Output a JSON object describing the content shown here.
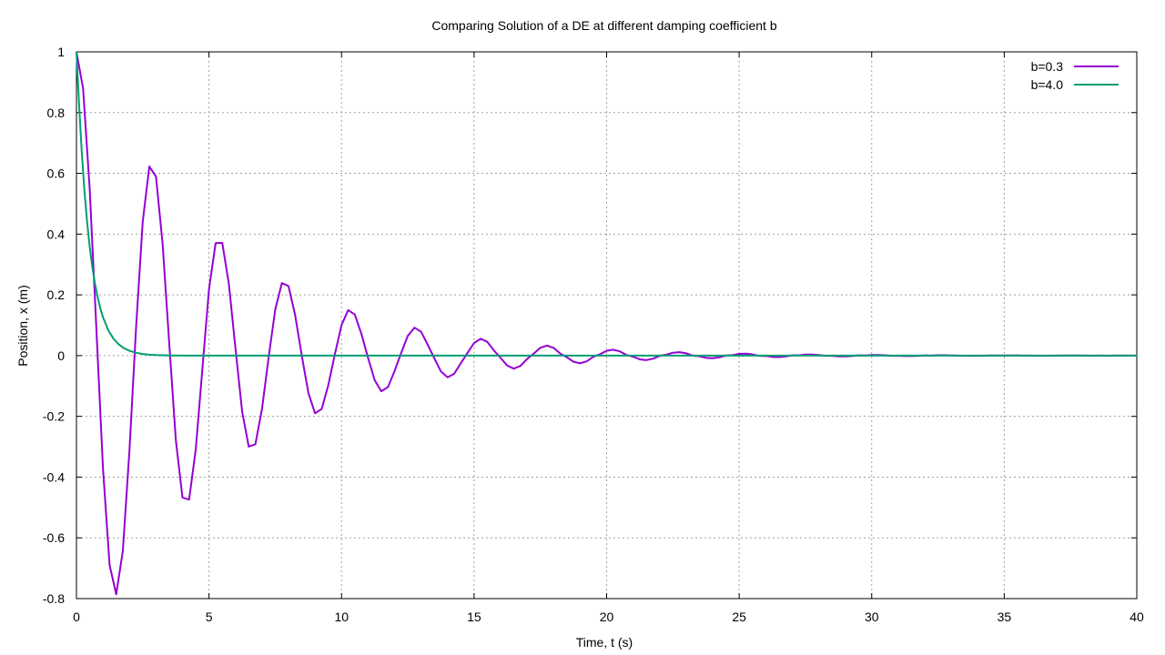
{
  "chart_data": {
    "type": "line",
    "title": "Comparing Solution of a DE at different damping coefficient b",
    "xlabel": "Time, t (s)",
    "ylabel": "Position, x (m)",
    "xlim": [
      0,
      40
    ],
    "ylim": [
      -0.8,
      1
    ],
    "xticks": [
      "0",
      "5",
      "10",
      "15",
      "20",
      "25",
      "30",
      "35",
      "40"
    ],
    "yticks": [
      "-0.8",
      "-0.6",
      "-0.4",
      "-0.2",
      "0",
      "0.2",
      "0.4",
      "0.6",
      "0.8",
      "1"
    ],
    "grid": true,
    "legend_position": "top-right",
    "series": [
      {
        "name": "b=0.3",
        "color": "#9400d3",
        "x": [
          0,
          0.25,
          0.5,
          0.75,
          1,
          1.25,
          1.5,
          1.75,
          2,
          2.25,
          2.5,
          2.75,
          3,
          3.25,
          3.5,
          3.75,
          4,
          4.25,
          4.5,
          4.75,
          5,
          5.25,
          5.5,
          5.75,
          6,
          6.25,
          6.5,
          6.75,
          7,
          7.25,
          7.5,
          7.75,
          8,
          8.25,
          8.5,
          8.75,
          9,
          9.25,
          9.5,
          9.75,
          10,
          10.25,
          10.5,
          10.75,
          11,
          11.25,
          11.5,
          11.75,
          12,
          12.25,
          12.5,
          12.75,
          13,
          13.25,
          13.5,
          13.75,
          14,
          14.25,
          14.5,
          14.75,
          15,
          15.25,
          15.5,
          15.75,
          16,
          16.25,
          16.5,
          16.75,
          17,
          17.25,
          17.5,
          17.75,
          18,
          18.25,
          18.5,
          18.75,
          19,
          19.25,
          19.5,
          19.75,
          20,
          20.25,
          20.5,
          20.75,
          21,
          21.25,
          21.5,
          21.75,
          22,
          22.25,
          22.5,
          22.75,
          23,
          23.25,
          23.5,
          23.75,
          24,
          24.25,
          24.5,
          24.75,
          25,
          25.25,
          25.5,
          25.75,
          26,
          26.25,
          26.5,
          26.75,
          27,
          27.25,
          27.5,
          27.75,
          28,
          28.25,
          28.5,
          28.75,
          29,
          29.25,
          29.5,
          29.75,
          30,
          30.25,
          30.5,
          30.75,
          31,
          31.25,
          31.5,
          31.75,
          32,
          32.25,
          32.5,
          32.75,
          33,
          33.25,
          33.5,
          33.75,
          34,
          34.25,
          34.5,
          34.75,
          35,
          35.25,
          35.5,
          35.75,
          36,
          36.25,
          36.5,
          36.75,
          37,
          37.25,
          37.5,
          37.75,
          38,
          38.25,
          38.5,
          38.75,
          39,
          39.25,
          39.5,
          39.75,
          40
        ],
        "y": [
          1.0,
          0.8798,
          0.5487,
          0.0915,
          -0.3701,
          -0.6897,
          -0.786,
          -0.643,
          -0.3116,
          0.0935,
          0.4406,
          0.6225,
          0.5896,
          0.3681,
          0.0408,
          -0.2787,
          -0.4675,
          -0.4741,
          -0.3094,
          -0.0446,
          0.2189,
          0.3702,
          0.3712,
          0.2356,
          0.0224,
          -0.1838,
          -0.2997,
          -0.2919,
          -0.1755,
          -0.0058,
          0.1519,
          0.2389,
          0.2286,
          0.1334,
          0.0001,
          -0.1228,
          -0.1899,
          -0.1758,
          -0.0977,
          0.0052,
          0.1005,
          0.1497,
          0.1354,
          0.0714,
          -0.0073,
          -0.0808,
          -0.1175,
          -0.1035,
          -0.0511,
          0.0088,
          0.0652,
          0.0919,
          0.0788,
          0.036,
          -0.0089,
          -0.0521,
          -0.0716,
          -0.0597,
          -0.025,
          0.0084,
          0.0416,
          0.0555,
          0.0451,
          0.0169,
          -0.0075,
          -0.0328,
          -0.0429,
          -0.0339,
          -0.011,
          0.0065,
          0.0258,
          0.033,
          0.0254,
          0.0068,
          -0.0055,
          -0.0202,
          -0.0253,
          -0.0189,
          -0.0039,
          0.0045,
          0.0158,
          0.0194,
          0.014,
          0.002,
          -0.0037,
          -0.0122,
          -0.0148,
          -0.0103,
          -0.0008,
          0.0029,
          0.0095,
          0.0112,
          0.0075,
          0.0,
          -0.0023,
          -0.0073,
          -0.0085,
          -0.0055,
          0.0004,
          0.0017,
          0.0056,
          0.0064,
          0.004,
          -0.0006,
          -0.0013,
          -0.0043,
          -0.0048,
          -0.0029,
          0.0007,
          0.0009,
          0.0033,
          0.0036,
          0.0021,
          -0.0007,
          -0.0007,
          -0.0025,
          -0.0027,
          -0.0015,
          0.0007,
          0.0005,
          0.0019,
          0.002,
          0.0011,
          -0.0006,
          -0.0003,
          -0.0015,
          -0.0015,
          -0.0008,
          0.0005,
          0.0002,
          0.0011,
          0.0011,
          0.0006,
          -0.0004,
          -0.0002,
          -0.0008,
          -0.0008,
          -0.0004,
          0.0003,
          0.0001,
          0.0006,
          0.0006,
          0.0003,
          -0.0003,
          -0.0001,
          -0.0005,
          -0.0005,
          -0.0002,
          0.0002,
          0.0,
          0.0004,
          0.0003,
          0.0001,
          -0.0002,
          0.0,
          -0.0003,
          -0.0003,
          -0.0001,
          0.0001,
          0.0,
          0.0002
        ]
      },
      {
        "name": "b=4.0",
        "color": "#009e73",
        "x": [
          0,
          0.1,
          0.2,
          0.3,
          0.4,
          0.5,
          0.6,
          0.7,
          0.8,
          0.9,
          1.0,
          1.2,
          1.4,
          1.6,
          1.8,
          2.0,
          2.25,
          2.5,
          2.75,
          3.0,
          3.5,
          4.0,
          5,
          6,
          8,
          10,
          15,
          20,
          25,
          30,
          35,
          40
        ],
        "y": [
          1.0,
          0.8249,
          0.6702,
          0.5438,
          0.4414,
          0.3584,
          0.2911,
          0.2364,
          0.192,
          0.156,
          0.1267,
          0.0836,
          0.0552,
          0.0364,
          0.024,
          0.0159,
          0.0092,
          0.0053,
          0.0031,
          0.0018,
          0.0006,
          0.0002,
          0.0,
          0.0,
          0.0,
          0.0,
          0.0,
          0.0,
          0.0,
          0.0,
          0.0,
          0.0
        ]
      }
    ]
  }
}
